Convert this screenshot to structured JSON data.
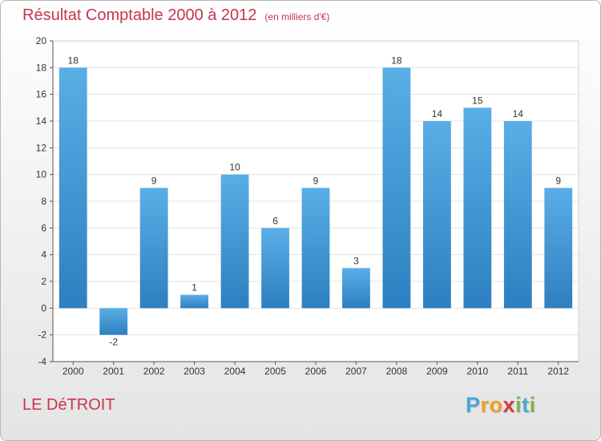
{
  "title": "Résultat Comptable 2000 à 2012",
  "subtitle": "(en milliers d'€)",
  "commune": "LE DéTROIT",
  "logo": {
    "text": "Proxiti",
    "letters": [
      "P",
      "r",
      "o",
      "x",
      "i",
      "t",
      "i"
    ],
    "colors": [
      "#4aa8d8",
      "#f0a020",
      "#f0a020",
      "#d03c3c",
      "#7ab648",
      "#4aa8d8",
      "#7ab648"
    ]
  },
  "colors": {
    "bar_top": "#5aaee6",
    "bar_bottom": "#2e7fc0",
    "title": "#c8344e",
    "grid": "#e3e3e3",
    "axis": "#555555"
  },
  "chart_data": {
    "type": "bar",
    "categories": [
      "2000",
      "2001",
      "2002",
      "2003",
      "2004",
      "2005",
      "2006",
      "2007",
      "2008",
      "2009",
      "2010",
      "2011",
      "2012"
    ],
    "values": [
      18,
      -2,
      9,
      1,
      10,
      6,
      9,
      3,
      18,
      14,
      15,
      14,
      9
    ],
    "ylim": [
      -4,
      20
    ],
    "yticks": [
      -4,
      -2,
      0,
      2,
      4,
      6,
      8,
      10,
      12,
      14,
      16,
      18,
      20
    ],
    "title": "Résultat Comptable 2000 à 2012",
    "xlabel": "",
    "ylabel": "",
    "grid": true
  }
}
